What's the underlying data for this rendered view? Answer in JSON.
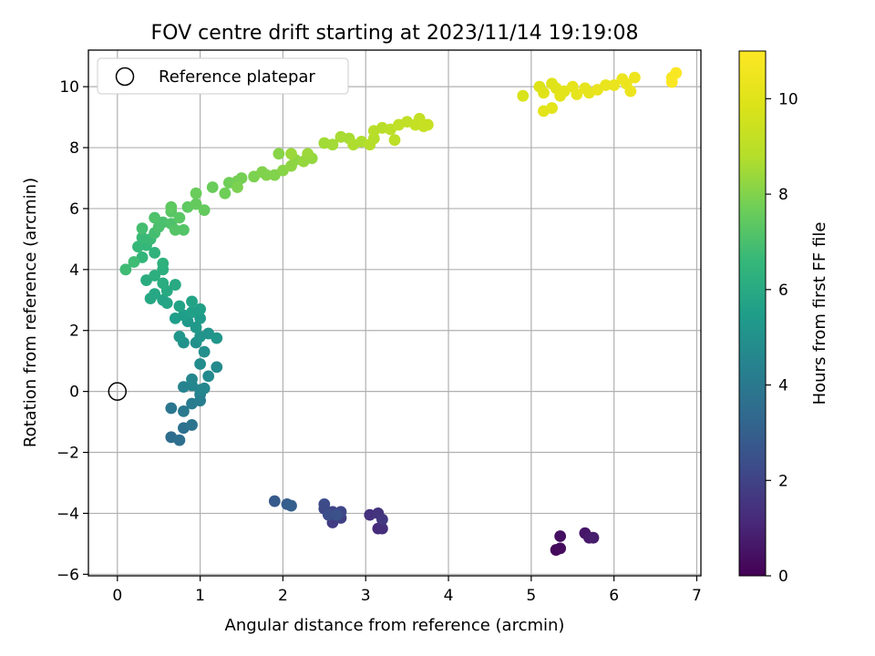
{
  "chart_data": {
    "type": "scatter",
    "title": "FOV centre drift starting at 2023/11/14 19:19:08",
    "xlabel": "Angular distance from reference (arcmin)",
    "ylabel": "Rotation from reference (arcmin)",
    "xlim": [
      -0.35,
      7.05
    ],
    "ylim": [
      -6.05,
      11.2
    ],
    "xticks": [
      0,
      1,
      2,
      3,
      4,
      5,
      6,
      7
    ],
    "yticks": [
      -6,
      -4,
      -2,
      0,
      2,
      4,
      6,
      8,
      10
    ],
    "grid": true,
    "colormap": "viridis",
    "colorbar": {
      "label": "Hours from first FF file",
      "range": [
        0,
        11
      ],
      "ticks": [
        0,
        2,
        4,
        6,
        8,
        10
      ]
    },
    "legend": {
      "position": "top-left",
      "entries": [
        "Reference platepar"
      ]
    },
    "reference_point": {
      "x": 0,
      "y": 0
    },
    "points": [
      {
        "x": 5.3,
        "y": -5.2,
        "h": 0.2
      },
      {
        "x": 5.35,
        "y": -5.15,
        "h": 0.3
      },
      {
        "x": 5.35,
        "y": -4.75,
        "h": 0.4
      },
      {
        "x": 5.65,
        "y": -4.65,
        "h": 0.6
      },
      {
        "x": 5.7,
        "y": -4.8,
        "h": 0.7
      },
      {
        "x": 5.75,
        "y": -4.8,
        "h": 0.8
      },
      {
        "x": 3.15,
        "y": -4.5,
        "h": 1.2
      },
      {
        "x": 3.2,
        "y": -4.5,
        "h": 1.3
      },
      {
        "x": 3.05,
        "y": -4.05,
        "h": 1.4
      },
      {
        "x": 3.15,
        "y": -4.0,
        "h": 1.5
      },
      {
        "x": 3.2,
        "y": -4.2,
        "h": 1.6
      },
      {
        "x": 2.6,
        "y": -4.3,
        "h": 1.8
      },
      {
        "x": 2.7,
        "y": -4.15,
        "h": 1.9
      },
      {
        "x": 2.6,
        "y": -3.95,
        "h": 2.0
      },
      {
        "x": 2.7,
        "y": -3.95,
        "h": 2.1
      },
      {
        "x": 2.5,
        "y": -3.85,
        "h": 2.2
      },
      {
        "x": 2.5,
        "y": -3.7,
        "h": 2.3
      },
      {
        "x": 2.55,
        "y": -4.05,
        "h": 2.4
      },
      {
        "x": 2.65,
        "y": -4.05,
        "h": 2.5
      },
      {
        "x": 1.9,
        "y": -3.6,
        "h": 2.8
      },
      {
        "x": 2.05,
        "y": -3.7,
        "h": 2.9
      },
      {
        "x": 2.1,
        "y": -3.75,
        "h": 3.0
      },
      {
        "x": 0.65,
        "y": -1.5,
        "h": 3.5
      },
      {
        "x": 0.75,
        "y": -1.6,
        "h": 3.6
      },
      {
        "x": 0.8,
        "y": -1.2,
        "h": 3.7
      },
      {
        "x": 0.9,
        "y": -1.1,
        "h": 3.8
      },
      {
        "x": 0.65,
        "y": -0.55,
        "h": 3.9
      },
      {
        "x": 0.8,
        "y": -0.65,
        "h": 4.0
      },
      {
        "x": 0.9,
        "y": -0.4,
        "h": 4.1
      },
      {
        "x": 1.0,
        "y": -0.3,
        "h": 4.2
      },
      {
        "x": 1.0,
        "y": -0.1,
        "h": 4.3
      },
      {
        "x": 0.8,
        "y": 0.15,
        "h": 4.4
      },
      {
        "x": 0.9,
        "y": 0.2,
        "h": 4.5
      },
      {
        "x": 1.0,
        "y": 0.05,
        "h": 4.5
      },
      {
        "x": 1.05,
        "y": 0.1,
        "h": 4.6
      },
      {
        "x": 0.9,
        "y": 0.4,
        "h": 4.6
      },
      {
        "x": 1.2,
        "y": 0.8,
        "h": 4.7
      },
      {
        "x": 1.1,
        "y": 0.5,
        "h": 4.7
      },
      {
        "x": 1.0,
        "y": 0.9,
        "h": 4.8
      },
      {
        "x": 1.05,
        "y": 1.3,
        "h": 4.9
      },
      {
        "x": 0.95,
        "y": 1.6,
        "h": 5.0
      },
      {
        "x": 0.8,
        "y": 1.6,
        "h": 5.0
      },
      {
        "x": 1.0,
        "y": 1.8,
        "h": 5.1
      },
      {
        "x": 1.1,
        "y": 1.9,
        "h": 5.1
      },
      {
        "x": 1.2,
        "y": 1.75,
        "h": 5.2
      },
      {
        "x": 0.75,
        "y": 1.8,
        "h": 5.2
      },
      {
        "x": 0.95,
        "y": 2.1,
        "h": 5.3
      },
      {
        "x": 0.85,
        "y": 2.3,
        "h": 5.3
      },
      {
        "x": 1.0,
        "y": 2.4,
        "h": 5.4
      },
      {
        "x": 0.8,
        "y": 2.5,
        "h": 5.5
      },
      {
        "x": 0.7,
        "y": 2.4,
        "h": 5.5
      },
      {
        "x": 0.9,
        "y": 2.6,
        "h": 5.6
      },
      {
        "x": 1.0,
        "y": 2.7,
        "h": 5.6
      },
      {
        "x": 0.9,
        "y": 2.95,
        "h": 5.7
      },
      {
        "x": 0.75,
        "y": 2.8,
        "h": 5.7
      },
      {
        "x": 0.6,
        "y": 2.9,
        "h": 5.8
      },
      {
        "x": 0.55,
        "y": 3.0,
        "h": 5.8
      },
      {
        "x": 0.4,
        "y": 3.05,
        "h": 5.9
      },
      {
        "x": 0.45,
        "y": 3.2,
        "h": 5.9
      },
      {
        "x": 0.6,
        "y": 3.3,
        "h": 6.0
      },
      {
        "x": 0.7,
        "y": 3.5,
        "h": 6.0
      },
      {
        "x": 0.55,
        "y": 3.55,
        "h": 6.1
      },
      {
        "x": 0.35,
        "y": 3.65,
        "h": 6.1
      },
      {
        "x": 0.45,
        "y": 3.8,
        "h": 6.2
      },
      {
        "x": 0.55,
        "y": 4.0,
        "h": 6.2
      },
      {
        "x": 0.55,
        "y": 4.2,
        "h": 6.3
      },
      {
        "x": 0.45,
        "y": 4.55,
        "h": 6.4
      },
      {
        "x": 0.3,
        "y": 4.4,
        "h": 6.5
      },
      {
        "x": 0.25,
        "y": 4.75,
        "h": 6.6
      },
      {
        "x": 0.35,
        "y": 4.8,
        "h": 6.6
      },
      {
        "x": 0.3,
        "y": 5.05,
        "h": 6.7
      },
      {
        "x": 0.4,
        "y": 5.0,
        "h": 6.7
      },
      {
        "x": 0.1,
        "y": 4.0,
        "h": 6.8
      },
      {
        "x": 0.2,
        "y": 4.25,
        "h": 6.8
      },
      {
        "x": 0.45,
        "y": 5.2,
        "h": 6.9
      },
      {
        "x": 0.3,
        "y": 5.35,
        "h": 6.9
      },
      {
        "x": 0.5,
        "y": 5.4,
        "h": 7.0
      },
      {
        "x": 0.55,
        "y": 5.55,
        "h": 7.0
      },
      {
        "x": 0.65,
        "y": 5.5,
        "h": 7.1
      },
      {
        "x": 0.45,
        "y": 5.7,
        "h": 7.1
      },
      {
        "x": 0.7,
        "y": 5.3,
        "h": 7.2
      },
      {
        "x": 0.8,
        "y": 5.3,
        "h": 7.2
      },
      {
        "x": 0.75,
        "y": 5.7,
        "h": 7.3
      },
      {
        "x": 0.65,
        "y": 5.9,
        "h": 7.3
      },
      {
        "x": 0.65,
        "y": 6.05,
        "h": 7.4
      },
      {
        "x": 0.85,
        "y": 6.05,
        "h": 7.4
      },
      {
        "x": 0.95,
        "y": 6.15,
        "h": 7.5
      },
      {
        "x": 1.05,
        "y": 5.95,
        "h": 7.5
      },
      {
        "x": 0.95,
        "y": 6.5,
        "h": 7.6
      },
      {
        "x": 1.15,
        "y": 6.7,
        "h": 7.6
      },
      {
        "x": 1.3,
        "y": 6.5,
        "h": 7.7
      },
      {
        "x": 1.35,
        "y": 6.85,
        "h": 7.7
      },
      {
        "x": 1.45,
        "y": 6.9,
        "h": 7.8
      },
      {
        "x": 1.5,
        "y": 7.0,
        "h": 7.8
      },
      {
        "x": 1.45,
        "y": 6.7,
        "h": 7.9
      },
      {
        "x": 1.65,
        "y": 7.05,
        "h": 7.9
      },
      {
        "x": 1.75,
        "y": 7.2,
        "h": 8.0
      },
      {
        "x": 1.8,
        "y": 7.1,
        "h": 8.0
      },
      {
        "x": 1.9,
        "y": 7.1,
        "h": 8.0
      },
      {
        "x": 2.0,
        "y": 7.25,
        "h": 8.1
      },
      {
        "x": 1.95,
        "y": 7.8,
        "h": 8.1
      },
      {
        "x": 2.1,
        "y": 7.4,
        "h": 8.2
      },
      {
        "x": 2.15,
        "y": 7.6,
        "h": 8.2
      },
      {
        "x": 2.25,
        "y": 7.55,
        "h": 8.3
      },
      {
        "x": 2.35,
        "y": 7.65,
        "h": 8.3
      },
      {
        "x": 2.3,
        "y": 7.8,
        "h": 8.4
      },
      {
        "x": 2.1,
        "y": 7.8,
        "h": 8.4
      },
      {
        "x": 2.5,
        "y": 8.15,
        "h": 8.5
      },
      {
        "x": 2.6,
        "y": 8.1,
        "h": 8.5
      },
      {
        "x": 2.7,
        "y": 8.35,
        "h": 8.6
      },
      {
        "x": 2.8,
        "y": 8.3,
        "h": 8.6
      },
      {
        "x": 2.85,
        "y": 8.1,
        "h": 8.7
      },
      {
        "x": 2.95,
        "y": 8.2,
        "h": 8.7
      },
      {
        "x": 3.05,
        "y": 8.1,
        "h": 8.8
      },
      {
        "x": 3.1,
        "y": 8.3,
        "h": 8.8
      },
      {
        "x": 3.1,
        "y": 8.55,
        "h": 8.9
      },
      {
        "x": 3.2,
        "y": 8.65,
        "h": 8.9
      },
      {
        "x": 3.3,
        "y": 8.6,
        "h": 9.0
      },
      {
        "x": 3.35,
        "y": 8.25,
        "h": 9.0
      },
      {
        "x": 3.4,
        "y": 8.75,
        "h": 9.1
      },
      {
        "x": 3.5,
        "y": 8.85,
        "h": 9.1
      },
      {
        "x": 3.6,
        "y": 8.75,
        "h": 9.2
      },
      {
        "x": 3.65,
        "y": 8.95,
        "h": 9.2
      },
      {
        "x": 3.7,
        "y": 8.7,
        "h": 9.3
      },
      {
        "x": 3.75,
        "y": 8.75,
        "h": 9.3
      },
      {
        "x": 4.9,
        "y": 9.7,
        "h": 9.8
      },
      {
        "x": 5.1,
        "y": 10.0,
        "h": 9.9
      },
      {
        "x": 5.15,
        "y": 9.8,
        "h": 10.0
      },
      {
        "x": 5.25,
        "y": 10.1,
        "h": 10.0
      },
      {
        "x": 5.3,
        "y": 9.95,
        "h": 10.0
      },
      {
        "x": 5.35,
        "y": 9.7,
        "h": 10.1
      },
      {
        "x": 5.15,
        "y": 9.2,
        "h": 10.1
      },
      {
        "x": 5.25,
        "y": 9.3,
        "h": 10.1
      },
      {
        "x": 5.4,
        "y": 9.85,
        "h": 10.1
      },
      {
        "x": 5.5,
        "y": 10.0,
        "h": 10.2
      },
      {
        "x": 5.55,
        "y": 9.75,
        "h": 10.2
      },
      {
        "x": 5.65,
        "y": 9.95,
        "h": 10.2
      },
      {
        "x": 5.7,
        "y": 9.8,
        "h": 10.2
      },
      {
        "x": 5.8,
        "y": 9.9,
        "h": 10.3
      },
      {
        "x": 5.9,
        "y": 10.05,
        "h": 10.3
      },
      {
        "x": 6.0,
        "y": 10.05,
        "h": 10.3
      },
      {
        "x": 6.1,
        "y": 10.25,
        "h": 10.4
      },
      {
        "x": 6.15,
        "y": 10.1,
        "h": 10.4
      },
      {
        "x": 6.2,
        "y": 9.85,
        "h": 10.4
      },
      {
        "x": 6.25,
        "y": 10.3,
        "h": 10.5
      },
      {
        "x": 6.7,
        "y": 10.3,
        "h": 10.8
      },
      {
        "x": 6.75,
        "y": 10.45,
        "h": 10.9
      },
      {
        "x": 6.7,
        "y": 10.15,
        "h": 10.9
      }
    ]
  }
}
